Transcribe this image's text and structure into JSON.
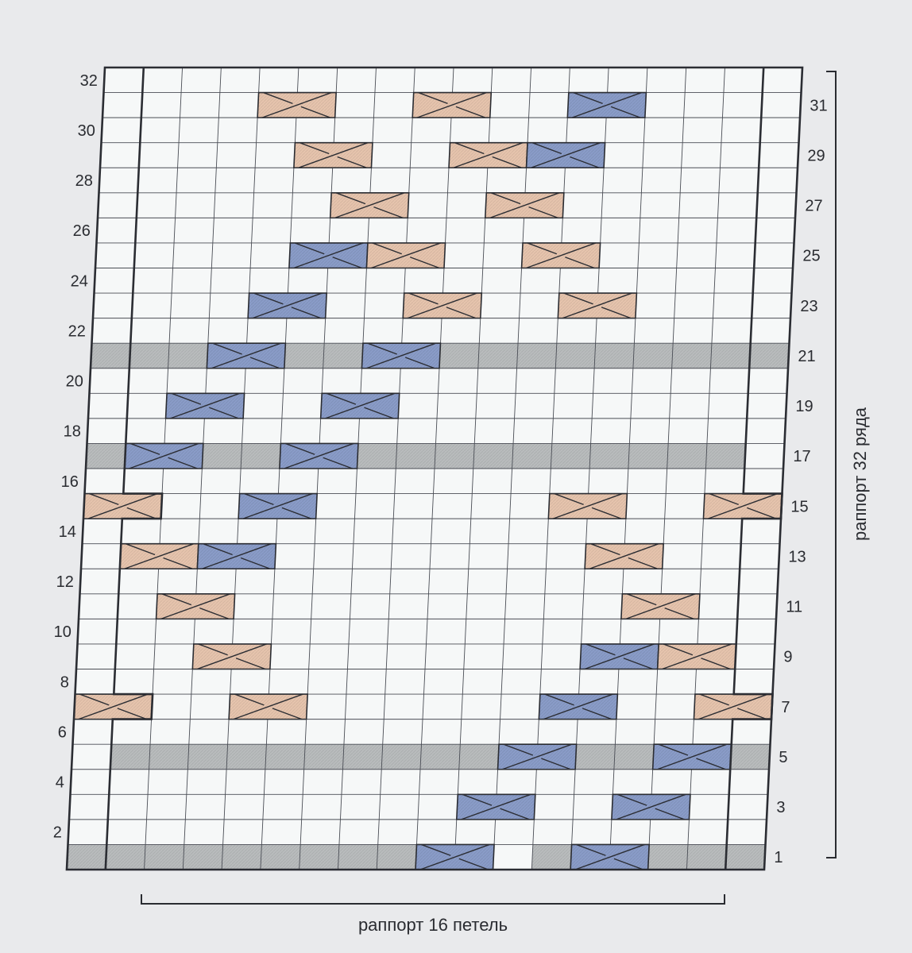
{
  "chart": {
    "rows": 32,
    "columns": 18,
    "even_row_labels": [
      "2",
      "4",
      "6",
      "8",
      "10",
      "12",
      "14",
      "16",
      "18",
      "20",
      "22",
      "24",
      "26",
      "28",
      "30",
      "32"
    ],
    "odd_row_labels": [
      "1",
      "3",
      "5",
      "7",
      "9",
      "11",
      "13",
      "15",
      "17",
      "19",
      "21",
      "23",
      "25",
      "27",
      "29",
      "31"
    ],
    "repeat_rows_label": "раппорт 32 ряда",
    "repeat_stitches_label": "раппорт 16 петель",
    "colors": {
      "background": "#e9eaec",
      "cell": "#f6f8f8",
      "grid": "#4a4d55",
      "shade": "#b9bcbd",
      "cable_blue": "#8a9cc8",
      "cable_peach": "#e6c4ad",
      "outline": "#2b2d33"
    },
    "shaded_rows": [
      {
        "row": 1,
        "from_col": 1,
        "to_col": 18,
        "except_cols": [
          10,
          11,
          12,
          14,
          15
        ]
      },
      {
        "row": 5,
        "from_col": 2,
        "to_col": 18,
        "except_cols": [
          12,
          13,
          16,
          17
        ]
      },
      {
        "row": 17,
        "from_col": 1,
        "to_col": 17
      },
      {
        "row": 21,
        "from_col": 1,
        "to_col": 18
      }
    ],
    "cables": [
      {
        "row": 1,
        "col": 10,
        "color": "blue"
      },
      {
        "row": 1,
        "col": 14,
        "color": "blue"
      },
      {
        "row": 3,
        "col": 11,
        "color": "blue"
      },
      {
        "row": 3,
        "col": 15,
        "color": "blue"
      },
      {
        "row": 5,
        "col": 12,
        "color": "blue"
      },
      {
        "row": 5,
        "col": 16,
        "color": "blue"
      },
      {
        "row": 7,
        "col": 1,
        "color": "peach"
      },
      {
        "row": 7,
        "col": 5,
        "color": "peach"
      },
      {
        "row": 7,
        "col": 13,
        "color": "blue"
      },
      {
        "row": 7,
        "col": 17,
        "color": "peach"
      },
      {
        "row": 9,
        "col": 4,
        "color": "peach"
      },
      {
        "row": 9,
        "col": 14,
        "color": "blue"
      },
      {
        "row": 9,
        "col": 16,
        "color": "peach"
      },
      {
        "row": 11,
        "col": 3,
        "color": "peach"
      },
      {
        "row": 11,
        "col": 15,
        "color": "peach"
      },
      {
        "row": 13,
        "col": 2,
        "color": "peach"
      },
      {
        "row": 13,
        "col": 4,
        "color": "blue"
      },
      {
        "row": 13,
        "col": 14,
        "color": "peach"
      },
      {
        "row": 15,
        "col": 1,
        "color": "peach"
      },
      {
        "row": 15,
        "col": 5,
        "color": "blue"
      },
      {
        "row": 15,
        "col": 13,
        "color": "peach"
      },
      {
        "row": 15,
        "col": 17,
        "color": "peach"
      },
      {
        "row": 17,
        "col": 2,
        "color": "blue"
      },
      {
        "row": 17,
        "col": 6,
        "color": "blue"
      },
      {
        "row": 19,
        "col": 3,
        "color": "blue"
      },
      {
        "row": 19,
        "col": 7,
        "color": "blue"
      },
      {
        "row": 21,
        "col": 4,
        "color": "blue"
      },
      {
        "row": 21,
        "col": 8,
        "color": "blue"
      },
      {
        "row": 23,
        "col": 5,
        "color": "blue"
      },
      {
        "row": 23,
        "col": 9,
        "color": "peach"
      },
      {
        "row": 23,
        "col": 13,
        "color": "peach"
      },
      {
        "row": 25,
        "col": 6,
        "color": "blue"
      },
      {
        "row": 25,
        "col": 8,
        "color": "peach"
      },
      {
        "row": 25,
        "col": 12,
        "color": "peach"
      },
      {
        "row": 27,
        "col": 7,
        "color": "peach"
      },
      {
        "row": 27,
        "col": 11,
        "color": "peach"
      },
      {
        "row": 29,
        "col": 6,
        "color": "peach"
      },
      {
        "row": 29,
        "col": 10,
        "color": "peach"
      },
      {
        "row": 29,
        "col": 12,
        "color": "blue"
      },
      {
        "row": 31,
        "col": 5,
        "color": "peach"
      },
      {
        "row": 31,
        "col": 9,
        "color": "peach"
      },
      {
        "row": 31,
        "col": 13,
        "color": "blue"
      }
    ]
  }
}
